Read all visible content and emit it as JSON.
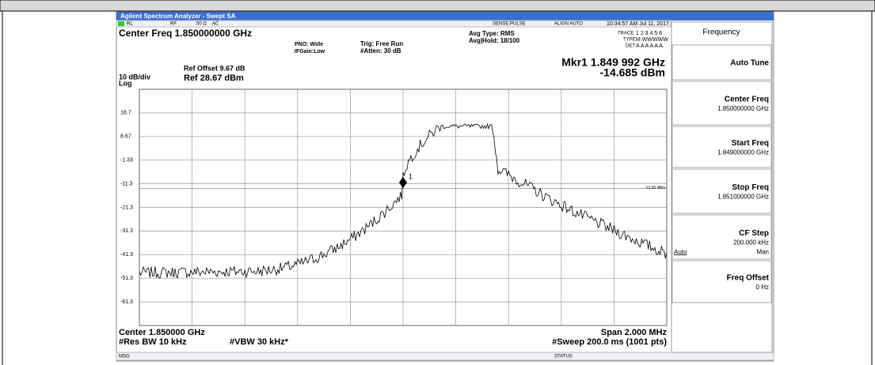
{
  "window_title": "Agilent Spectrum Analyzer - Swept SA",
  "status_row": [
    "RL",
    "RF",
    "50 Ω",
    "AC",
    "SENSE:PULSE",
    "ALIGN AUTO",
    "10:34:57 AM Jul 11, 2017"
  ],
  "settings": {
    "center_freq": "Center Freq 1.850000000 GHz",
    "pno": "PNO: Wide",
    "ifgain": "IFGain:Low",
    "trig": "Trig: Free Run",
    "atten": "#Atten: 30 dB",
    "avg_type": "Avg Type: RMS",
    "avg_hold": "Avg|Hold: 18/100",
    "trace": "TRACE",
    "trace_vals": "1 2 3 4 5 6",
    "type": "TYPE",
    "type_vals": "M WWWWW",
    "det": "DET",
    "det_vals": "A A A A A A"
  },
  "marker": {
    "label": "Mkr1 1.849 992 GHz",
    "value": "-14.685 dBm",
    "id": "1"
  },
  "reference": {
    "offset": "Ref Offset 9.67 dB",
    "level": "Ref 28.67 dBm",
    "scale": "10 dB/div",
    "mode": "Log"
  },
  "y_labels": [
    "18.7",
    "8.67",
    "-1.33",
    "-11.3",
    "-21.3",
    "-31.3",
    "-41.3",
    "-51.3",
    "-61.3"
  ],
  "display_line": "-13.00 dBm",
  "footer": {
    "center": "Center 1.850000 GHz",
    "span": "Span 2.000 MHz",
    "rbw": "#Res BW 10 kHz",
    "vbw": "#VBW 30 kHz*",
    "sweep": "#Sweep  200.0 ms (1001 pts)"
  },
  "status_bar": {
    "msg": "MSG",
    "status": "STATUS"
  },
  "menu": {
    "title": "Frequency",
    "keys": [
      {
        "label": "Auto Tune"
      },
      {
        "label": "Center Freq",
        "value": "1.850000000 GHz"
      },
      {
        "label": "Start Freq",
        "value": "1.849000000 GHz"
      },
      {
        "label": "Stop Freq",
        "value": "1.851000000 GHz"
      },
      {
        "label": "CF Step",
        "value": "200.000 kHz",
        "options": [
          "Auto",
          "Man"
        ]
      },
      {
        "label": "Freq Offset",
        "value": "0 Hz"
      }
    ]
  }
}
